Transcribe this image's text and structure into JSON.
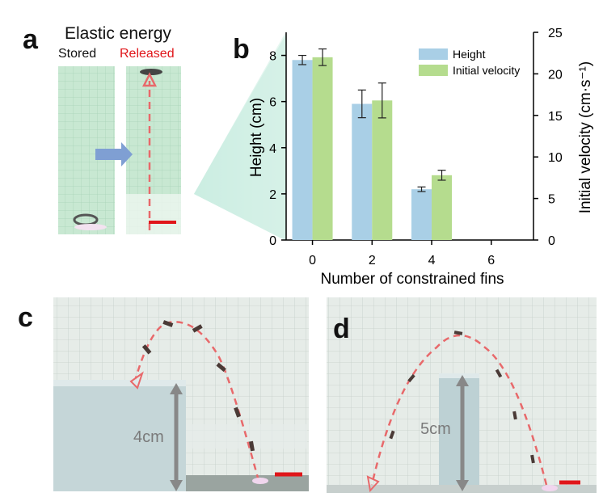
{
  "panel_a": {
    "letter": "a",
    "title": "Elastic energy",
    "label_stored": "Stored",
    "label_released": "Released"
  },
  "panel_b": {
    "letter": "b"
  },
  "panel_c": {
    "letter": "c",
    "height_label": "4cm"
  },
  "panel_d": {
    "letter": "d",
    "height_label": "5cm"
  },
  "colors": {
    "height_bar": "#a9cfe6",
    "velocity_bar": "#b5dc8e",
    "trajectory": "#e8696b",
    "scale_bar": "#e0161a",
    "grid_bg": "#cdebd9",
    "photo_bg": "#e4ebe7"
  },
  "chart_data": {
    "type": "bar",
    "xlabel": "Number of constrained fins",
    "ylabel_left": "Height (cm)",
    "ylabel_right": "Initial velocity (cm·s⁻¹)",
    "categories": [
      "0",
      "2",
      "4",
      "6"
    ],
    "ylim_left": [
      0,
      9
    ],
    "yticks_left": [
      "0",
      "2",
      "4",
      "6",
      "8"
    ],
    "ylim_right": [
      0,
      25
    ],
    "yticks_right": [
      "0",
      "5",
      "10",
      "15",
      "20",
      "25"
    ],
    "legend_position": "top-right",
    "series": [
      {
        "name": "Height",
        "axis": "left",
        "values": [
          7.8,
          5.9,
          2.2,
          null
        ],
        "errors": [
          0.2,
          0.6,
          0.1,
          null
        ]
      },
      {
        "name": "Initial velocity",
        "axis": "right",
        "values": [
          22.0,
          16.8,
          7.8,
          null
        ],
        "errors": [
          1.0,
          2.1,
          0.6,
          null
        ]
      }
    ]
  }
}
